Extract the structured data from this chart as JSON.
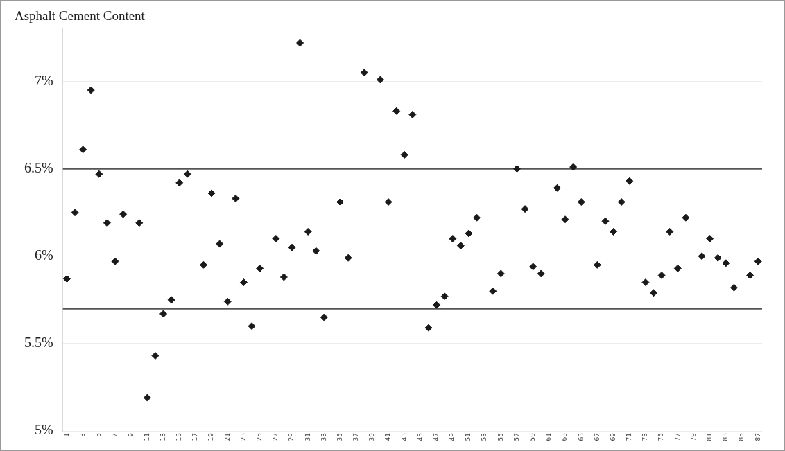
{
  "chart_data": {
    "type": "scatter",
    "title": "Asphalt Cement Content",
    "categories": [
      "1",
      null,
      "3",
      null,
      "5",
      null,
      "7",
      null,
      "9",
      null,
      "11",
      null,
      "13",
      null,
      "15",
      null,
      "17",
      null,
      "19",
      null,
      "21",
      null,
      "23",
      null,
      "25",
      null,
      "27",
      null,
      "29",
      null,
      "31",
      null,
      "33",
      null,
      "35",
      null,
      "37",
      null,
      "39",
      null,
      "41",
      null,
      "43",
      null,
      "45",
      null,
      "47",
      null,
      "49",
      null,
      "51",
      null,
      "53",
      null,
      "55",
      null,
      "57",
      null,
      "59",
      null,
      "61",
      null,
      "63",
      null,
      "65",
      null,
      "67",
      null,
      "69",
      null,
      "71",
      null,
      "73",
      null,
      "75",
      null,
      "77",
      null,
      "79",
      null,
      "81",
      null,
      "83",
      null,
      "85",
      null,
      "87"
    ],
    "series": [
      {
        "color": "#1a1a1a",
        "values": [
          5.87,
          6.25,
          6.61,
          6.95,
          6.47,
          6.19,
          5.97,
          6.24,
          null,
          6.19,
          5.19,
          5.43,
          5.67,
          5.75,
          6.42,
          6.47,
          null,
          5.95,
          6.36,
          6.07,
          5.74,
          6.33,
          5.85,
          5.6,
          5.93,
          null,
          6.1,
          5.88,
          6.05,
          7.22,
          6.14,
          6.03,
          5.65,
          null,
          6.31,
          5.99,
          null,
          7.05,
          null,
          7.01,
          6.31,
          6.83,
          6.58,
          6.81,
          null,
          5.59,
          5.72,
          5.77,
          6.1,
          6.06,
          6.13,
          6.22,
          null,
          5.8,
          5.9,
          null,
          6.5,
          6.27,
          5.94,
          5.9,
          null,
          6.39,
          6.21,
          6.51,
          6.31,
          null,
          5.95,
          6.2,
          6.14,
          6.31,
          6.43,
          null,
          5.85,
          5.79,
          5.89,
          6.14,
          5.93,
          6.22,
          null,
          6,
          6.1,
          5.99,
          5.96,
          5.82,
          null,
          5.89,
          5.97
        ]
      }
    ],
    "ylim": [
      5,
      7.3
    ],
    "yticks": [
      {
        "value": 5,
        "label": "5%"
      },
      {
        "value": 5.5,
        "label": "5.5%"
      },
      {
        "value": 6,
        "label": "6%"
      },
      {
        "value": 6.5,
        "label": "6.5%"
      },
      {
        "value": 7,
        "label": "7%"
      }
    ],
    "ref_lines": [
      {
        "axis": "y",
        "value": 6.5,
        "color": "#555555"
      },
      {
        "axis": "y",
        "value": 5.7,
        "color": "#555555"
      }
    ],
    "grid": "y",
    "legend": false,
    "marker": "diamond"
  }
}
